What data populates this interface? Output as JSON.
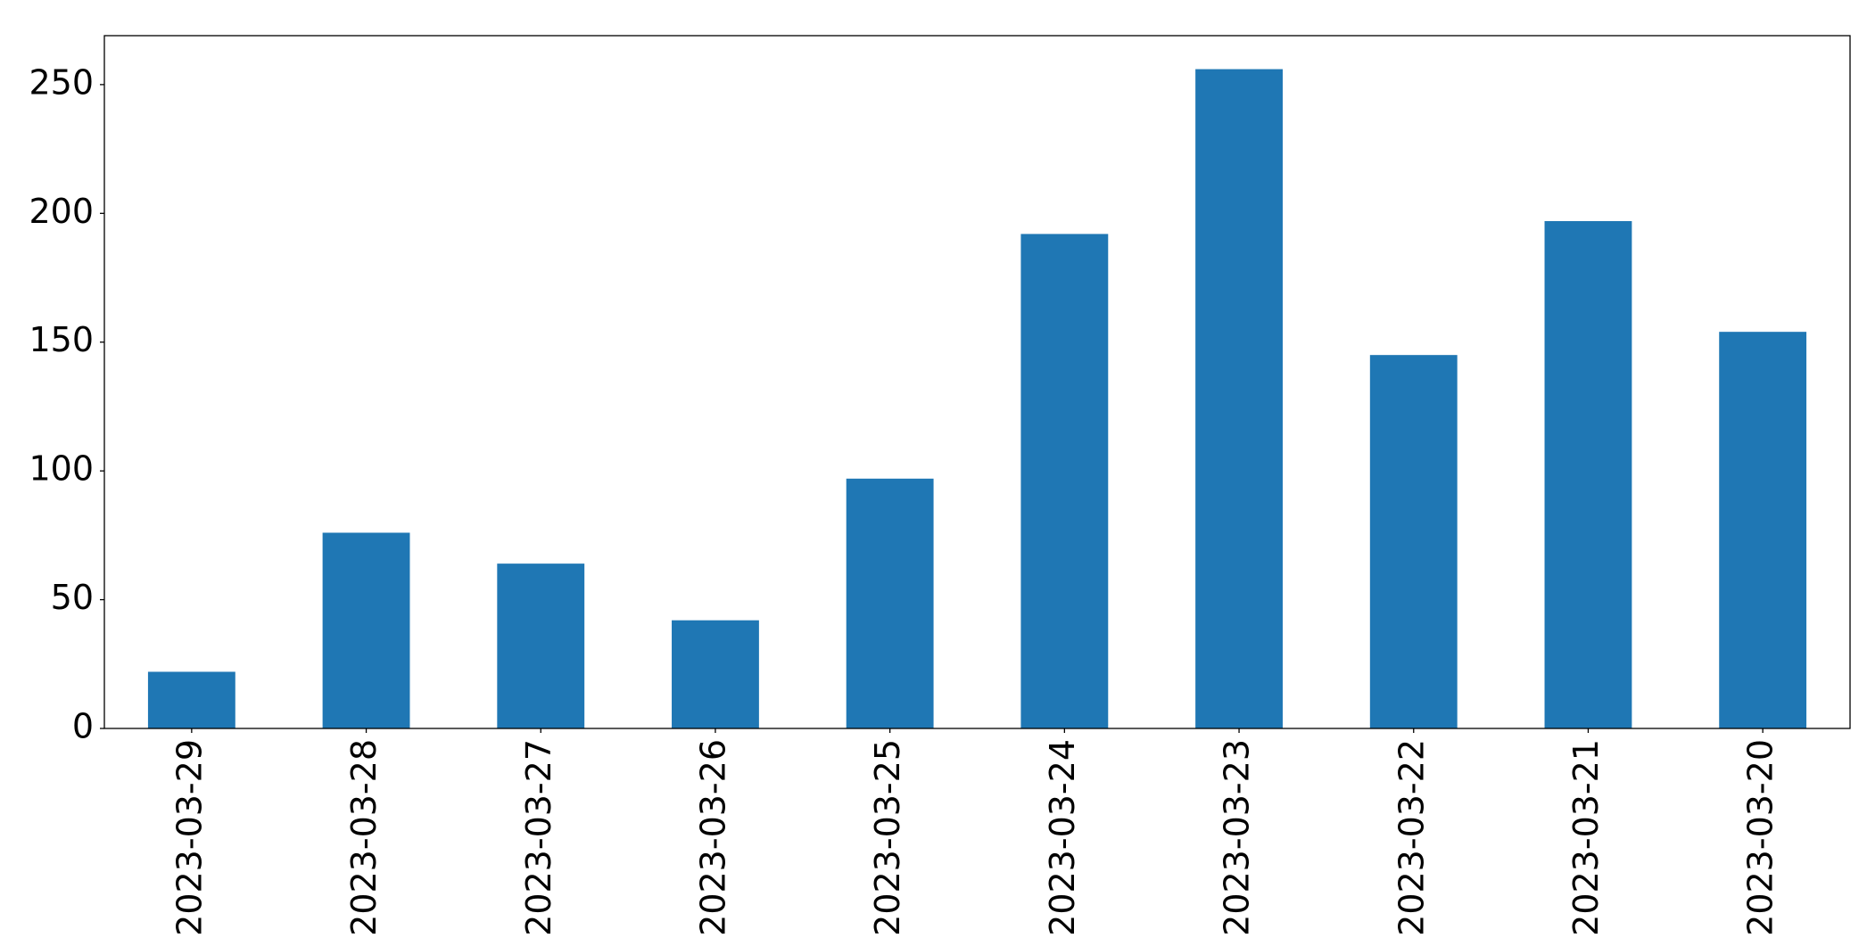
{
  "chart_data": {
    "type": "bar",
    "categories": [
      "2023-03-29",
      "2023-03-28",
      "2023-03-27",
      "2023-03-26",
      "2023-03-25",
      "2023-03-24",
      "2023-03-23",
      "2023-03-22",
      "2023-03-21",
      "2023-03-20"
    ],
    "values": [
      22,
      76,
      64,
      42,
      97,
      192,
      256,
      145,
      197,
      154
    ],
    "color": "#1f77b4",
    "ylim": [
      0,
      269
    ],
    "yticks": [
      0,
      50,
      100,
      150,
      200,
      250
    ],
    "grid": false
  }
}
